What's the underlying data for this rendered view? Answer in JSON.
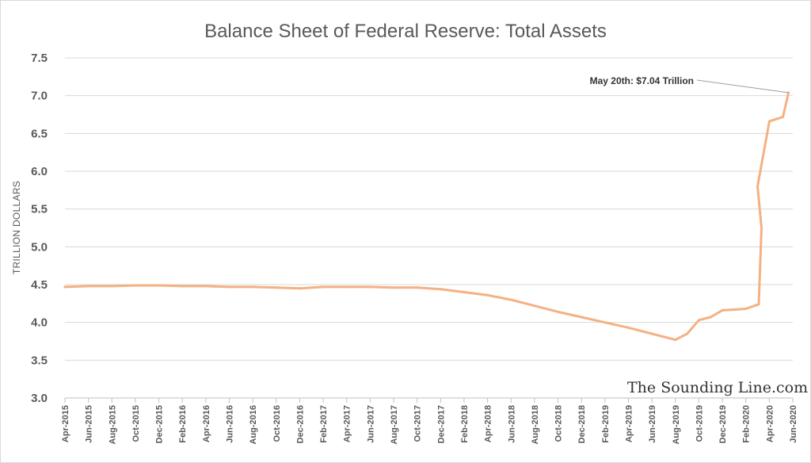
{
  "chart_data": {
    "type": "line",
    "title": "Balance Sheet of Federal Reserve: Total Assets",
    "xlabel": "",
    "ylabel": "TRILLION DOLLARS",
    "ylim": [
      3.0,
      7.5
    ],
    "yticks": [
      "7.5",
      "7.0",
      "6.5",
      "6.0",
      "5.5",
      "5.0",
      "4.5",
      "4.0",
      "3.5",
      "3.0"
    ],
    "xticks": [
      "Apr-2015",
      "Jun-2015",
      "Aug-2015",
      "Oct-2015",
      "Dec-2015",
      "Feb-2016",
      "Apr-2016",
      "Jun-2016",
      "Aug-2016",
      "Oct-2016",
      "Dec-2016",
      "Feb-2017",
      "Apr-2017",
      "Jun-2017",
      "Aug-2017",
      "Oct-2017",
      "Dec-2017",
      "Feb-2018",
      "Apr-2018",
      "Jun-2018",
      "Aug-2018",
      "Oct-2018",
      "Dec-2018",
      "Feb-2019",
      "Apr-2019",
      "Jun-2019",
      "Aug-2019",
      "Oct-2019",
      "Dec-2019",
      "Feb-2020",
      "Apr-2020",
      "Jun-2020"
    ],
    "grid": true,
    "series": [
      {
        "color": "#f4b183",
        "points": [
          [
            "Apr-2015",
            4.47
          ],
          [
            "Jun-2015",
            4.48
          ],
          [
            "Aug-2015",
            4.48
          ],
          [
            "Oct-2015",
            4.49
          ],
          [
            "Dec-2015",
            4.49
          ],
          [
            "Feb-2016",
            4.48
          ],
          [
            "Apr-2016",
            4.48
          ],
          [
            "Jun-2016",
            4.47
          ],
          [
            "Aug-2016",
            4.47
          ],
          [
            "Oct-2016",
            4.46
          ],
          [
            "Dec-2016",
            4.45
          ],
          [
            "Feb-2017",
            4.47
          ],
          [
            "Apr-2017",
            4.47
          ],
          [
            "Jun-2017",
            4.47
          ],
          [
            "Aug-2017",
            4.46
          ],
          [
            "Oct-2017",
            4.46
          ],
          [
            "Dec-2017",
            4.44
          ],
          [
            "Feb-2018",
            4.4
          ],
          [
            "Apr-2018",
            4.36
          ],
          [
            "Jun-2018",
            4.3
          ],
          [
            "Aug-2018",
            4.22
          ],
          [
            "Oct-2018",
            4.14
          ],
          [
            "Dec-2018",
            4.07
          ],
          [
            "Feb-2019",
            4.0
          ],
          [
            "Apr-2019",
            3.93
          ],
          [
            "Jun-2019",
            3.85
          ],
          [
            "Aug-2019",
            3.77
          ],
          [
            "Sep-2019",
            3.85
          ],
          [
            "Oct-2019",
            4.03
          ],
          [
            "Nov-2019",
            4.07
          ],
          [
            "Dec-2019",
            4.16
          ],
          [
            "Jan-2020",
            4.17
          ],
          [
            "Feb-2020",
            4.18
          ],
          [
            "Mar-04-2020",
            4.24
          ],
          [
            "Mar-11-2020",
            5.25
          ],
          [
            "Mar-2020",
            5.8
          ],
          [
            "Apr-2020",
            6.66
          ],
          [
            "May-06-2020",
            6.72
          ],
          [
            "May-20-2020",
            7.04
          ]
        ]
      }
    ],
    "annotation": "May 20th: $7.04 Trillion"
  },
  "watermark": "The Sounding Line.com"
}
